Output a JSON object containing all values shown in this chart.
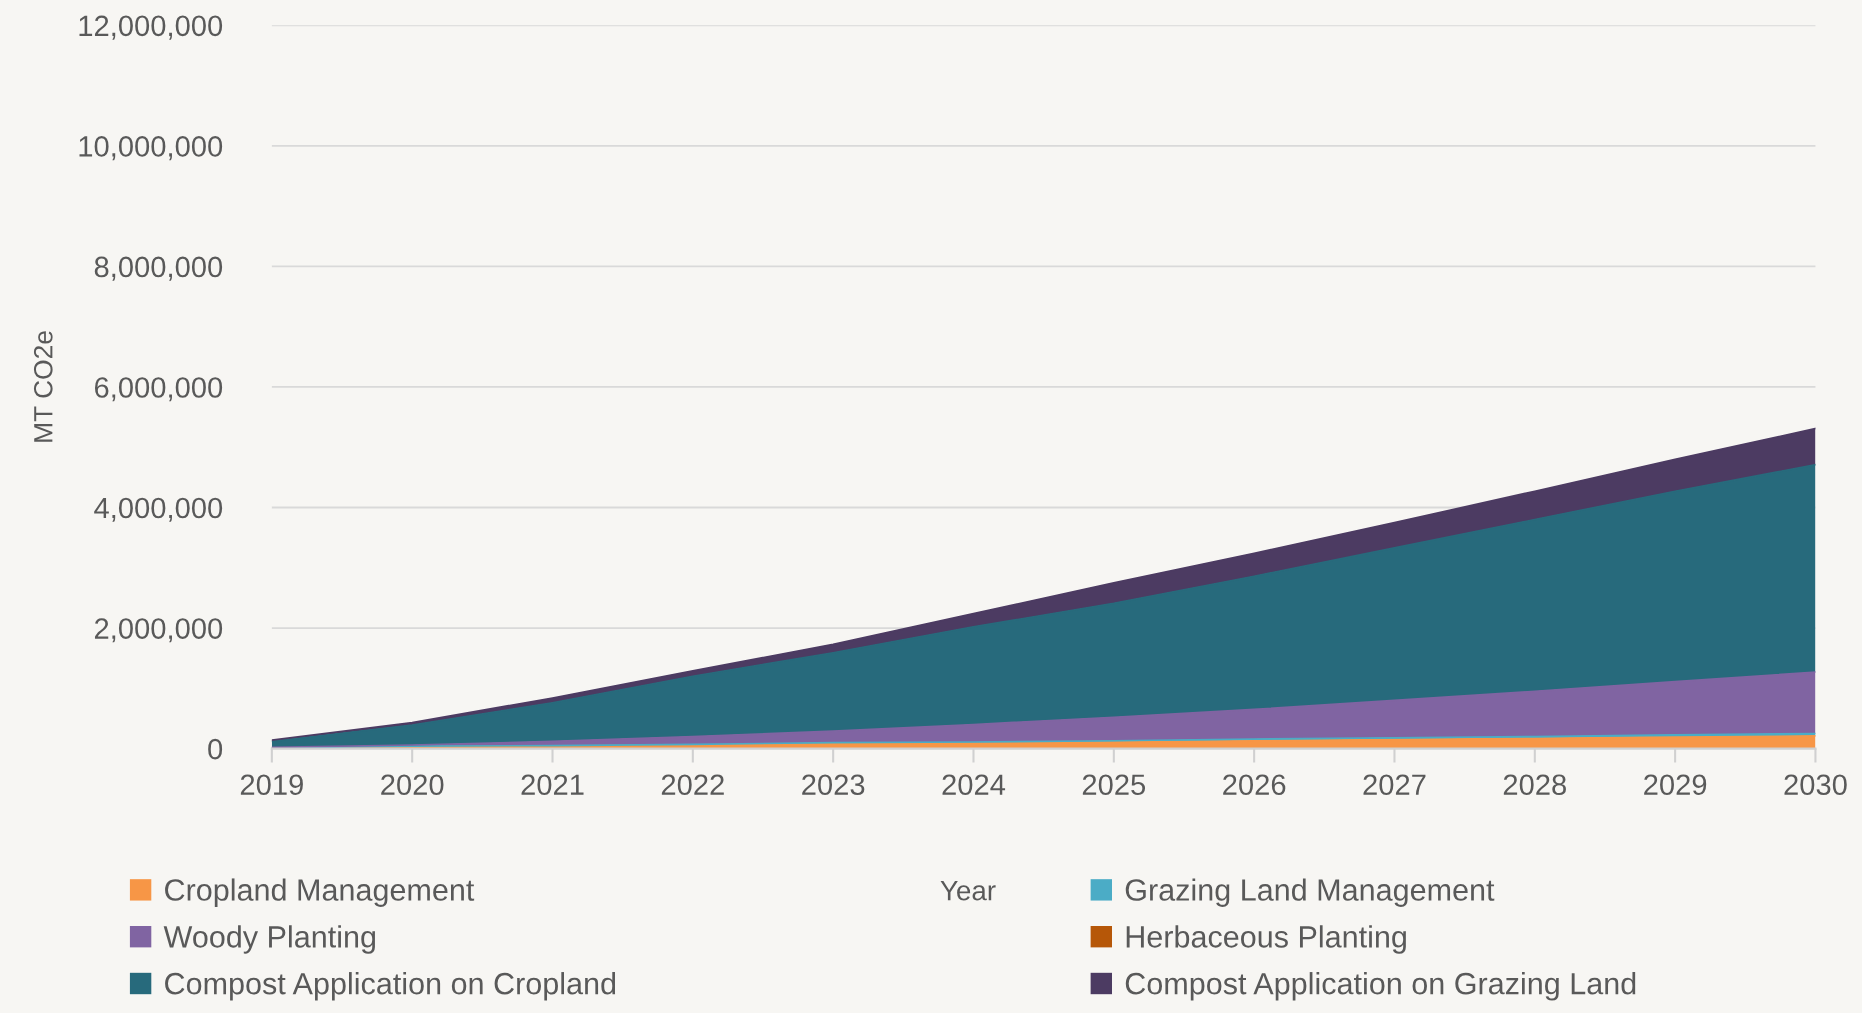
{
  "chart_data": {
    "type": "area",
    "stacked": true,
    "ylabel": "MT CO2e",
    "xlabel": "Year",
    "x": [
      2019,
      2020,
      2021,
      2022,
      2023,
      2024,
      2025,
      2026,
      2027,
      2028,
      2029,
      2030
    ],
    "xlim": [
      2019,
      2030
    ],
    "xticks": [
      2019,
      2020,
      2021,
      2022,
      2023,
      2024,
      2025,
      2026,
      2027,
      2028,
      2029,
      2030
    ],
    "ylim": [
      0,
      12000000
    ],
    "yticks": [
      {
        "value": 0,
        "label": "0"
      },
      {
        "value": 2000000,
        "label": "2,000,000"
      },
      {
        "value": 4000000,
        "label": "4,000,000"
      },
      {
        "value": 6000000,
        "label": "6,000,000"
      },
      {
        "value": 8000000,
        "label": "8,000,000"
      },
      {
        "value": 10000000,
        "label": "10,000,000"
      },
      {
        "value": 12000000,
        "label": "12,000,000"
      }
    ],
    "grid": "y",
    "legend": "bottom",
    "series": [
      {
        "name": "Cropland Management",
        "color": "#f79646",
        "values": [
          10000,
          30000,
          40000,
          60000,
          80000,
          90000,
          110000,
          130000,
          150000,
          170000,
          190000,
          210000
        ]
      },
      {
        "name": "Grazing Land Management",
        "color": "#4bacc6",
        "values": [
          0,
          10000,
          10000,
          10000,
          20000,
          20000,
          20000,
          30000,
          30000,
          30000,
          40000,
          40000
        ]
      },
      {
        "name": "Woody Planting",
        "color": "#8064a2",
        "values": [
          10000,
          20000,
          70000,
          130000,
          190000,
          290000,
          390000,
          490000,
          620000,
          750000,
          880000,
          1020000
        ]
      },
      {
        "name": "Herbaceous Planting",
        "color": "#b65708",
        "values": [
          null,
          null,
          null,
          null,
          null,
          null,
          null,
          null,
          null,
          null,
          null,
          null
        ]
      },
      {
        "name": "Compost Application on Cropland",
        "color": "#276a7c",
        "values": [
          100000,
          330000,
          640000,
          1000000,
          1300000,
          1620000,
          1890000,
          2210000,
          2530000,
          2850000,
          3160000,
          3440000
        ]
      },
      {
        "name": "Compost Application on Grazing Land",
        "color": "#4c3b62",
        "values": [
          20000,
          40000,
          80000,
          90000,
          140000,
          220000,
          340000,
          380000,
          420000,
          470000,
          530000,
          600000
        ]
      }
    ]
  }
}
